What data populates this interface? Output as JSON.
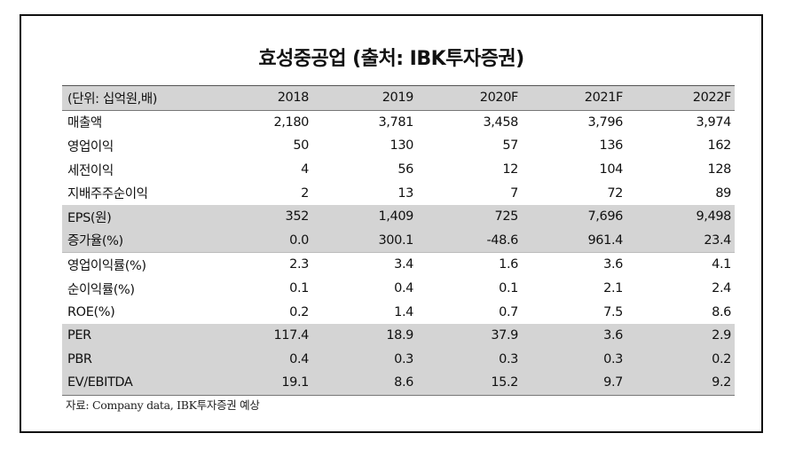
{
  "title": "효성중공업 (출처: IBK투자증권)",
  "table": {
    "headers": [
      "(단위: 십억원,배)",
      "2018",
      "2019",
      "2020F",
      "2021F",
      "2022F"
    ],
    "rows": [
      {
        "label": "매출액",
        "values": [
          "2,180",
          "3,781",
          "3,458",
          "3,796",
          "3,974"
        ]
      },
      {
        "label": "영업이익",
        "values": [
          "50",
          "130",
          "57",
          "136",
          "162"
        ]
      },
      {
        "label": "세전이익",
        "values": [
          "4",
          "56",
          "12",
          "104",
          "128"
        ]
      },
      {
        "label": "지배주주순이익",
        "values": [
          "2",
          "13",
          "7",
          "72",
          "89"
        ]
      },
      {
        "label": "EPS(원)",
        "values": [
          "352",
          "1,409",
          "725",
          "7,696",
          "9,498"
        ]
      },
      {
        "label": "증가율(%)",
        "values": [
          "0.0",
          "300.1",
          "-48.6",
          "961.4",
          "23.4"
        ]
      },
      {
        "label": "영업이익률(%)",
        "values": [
          "2.3",
          "3.4",
          "1.6",
          "3.6",
          "4.1"
        ]
      },
      {
        "label": "순이익률(%)",
        "values": [
          "0.1",
          "0.4",
          "0.1",
          "2.1",
          "2.4"
        ]
      },
      {
        "label": "ROE(%)",
        "values": [
          "0.2",
          "1.4",
          "0.7",
          "7.5",
          "8.6"
        ]
      },
      {
        "label": "PER",
        "values": [
          "117.4",
          "18.9",
          "37.9",
          "3.6",
          "2.9"
        ]
      },
      {
        "label": "PBR",
        "values": [
          "0.4",
          "0.3",
          "0.3",
          "0.3",
          "0.2"
        ]
      },
      {
        "label": "EV/EBITDA",
        "values": [
          "19.1",
          "8.6",
          "15.2",
          "9.7",
          "9.2"
        ]
      }
    ]
  },
  "source": "자료: Company data, IBK투자증권 예상"
}
